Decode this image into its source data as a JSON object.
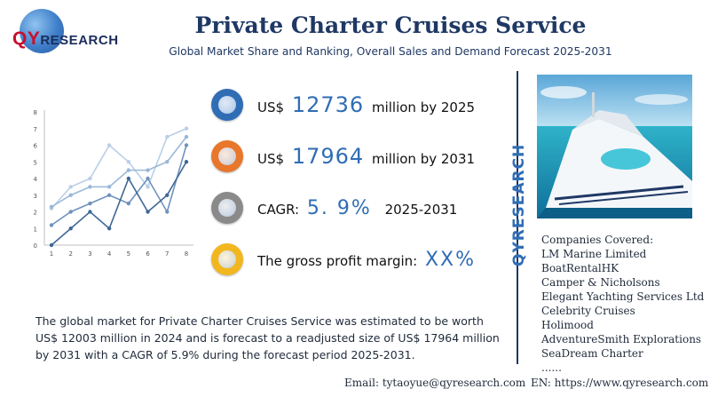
{
  "brand": {
    "logo_q": "QY",
    "logo_rest": "RESEARCH",
    "vertical": "QYRESEARCH"
  },
  "header": {
    "title": "Private Charter Cruises Service",
    "subtitle": "Global Market Share and Ranking, Overall Sales and Demand Forecast 2025-2031"
  },
  "stats": [
    {
      "prefix": "US$",
      "value": "12736",
      "suffix": "million by 2025",
      "color": "#2f6db5"
    },
    {
      "prefix": "US$",
      "value": "17964",
      "suffix": "million by 2031",
      "color": "#e8762b"
    },
    {
      "prefix": "CAGR:",
      "value": "5. 9%",
      "suffix": "2025-2031",
      "color": "#8a8a8a"
    },
    {
      "prefix": "The gross profit margin:",
      "value": "XX%",
      "suffix": "",
      "color": "#f2b71f"
    }
  ],
  "description": "The global market for Private Charter Cruises Service was estimated to be worth US$ 12003 million in 2024 and is forecast to a readjusted size of US$ 17964 million by 2031 with a CAGR of 5.9% during the forecast period 2025-2031.",
  "companies": {
    "heading": "Companies Covered:",
    "items": [
      "LM Marine Limited",
      "BoatRentalHK",
      "Camper & Nicholsons",
      "Elegant Yachting Services Ltd",
      "Celebrity Cruises",
      "Holimood",
      "AdventureSmith Explorations",
      "SeaDream Charter",
      "......"
    ]
  },
  "footer": {
    "email": "Email:  tytaoyue@qyresearch.com",
    "website": "EN: https://www.qyresearch.com"
  },
  "chart_data": {
    "type": "line",
    "x": [
      1,
      2,
      3,
      4,
      5,
      6,
      7,
      8
    ],
    "ylim": [
      0,
      8
    ],
    "yticks": [
      0,
      1,
      2,
      3,
      4,
      5,
      6,
      7,
      8
    ],
    "grid": false,
    "series": [
      {
        "values": [
          2.2,
          3.5,
          4,
          6,
          5,
          3.5,
          6.5,
          7
        ],
        "color": "#b9cfe6"
      },
      {
        "values": [
          2.3,
          3,
          3.5,
          3.5,
          4.5,
          4.5,
          5,
          6.5
        ],
        "color": "#9ab7d8"
      },
      {
        "values": [
          1.2,
          2,
          2.5,
          3,
          2.5,
          4,
          2,
          6
        ],
        "color": "#6f93bd"
      },
      {
        "values": [
          0,
          1,
          2,
          1,
          4,
          2,
          3,
          5
        ],
        "color": "#3f6895"
      }
    ]
  }
}
